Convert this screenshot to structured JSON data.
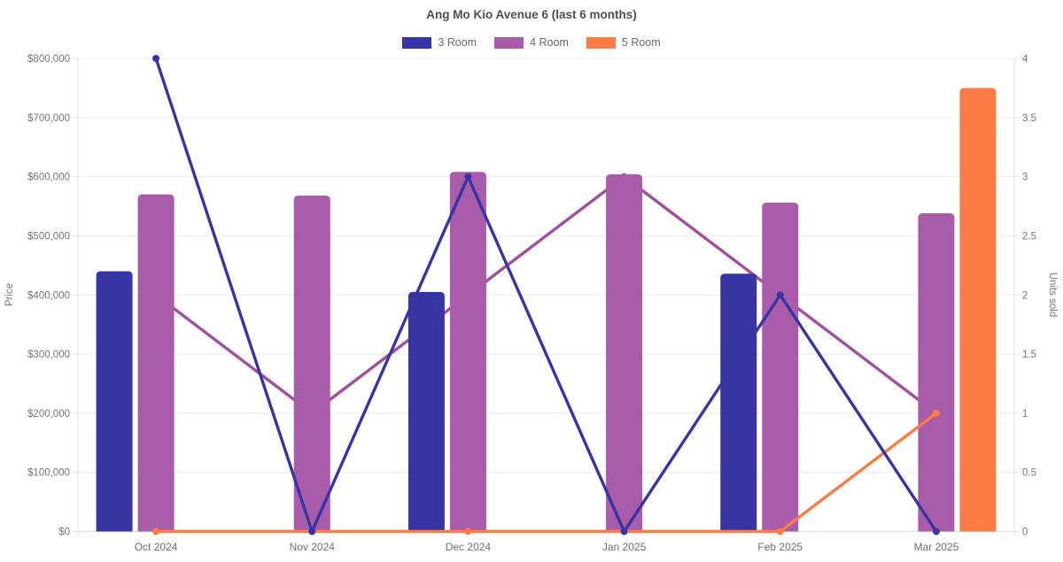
{
  "chart_data": {
    "type": "mixed bar+line",
    "title": "Ang Mo Kio Avenue 6 (last 6 months)",
    "categories": [
      "Oct 2024",
      "Nov 2024",
      "Dec 2024",
      "Jan 2025",
      "Feb 2025",
      "Mar 2025"
    ],
    "left_axis": {
      "label": "Price",
      "min": 0,
      "max": 800000,
      "step": 100000,
      "tick_prefix": "$",
      "tick_labels": [
        "$0",
        "$100,000",
        "$200,000",
        "$300,000",
        "$400,000",
        "$500,000",
        "$600,000",
        "$700,000",
        "$800,000"
      ]
    },
    "right_axis": {
      "label": "Units sold",
      "min": 0,
      "max": 4,
      "step": 0.5,
      "tick_labels": [
        "0",
        "0.5",
        "1",
        "1.5",
        "2",
        "2.5",
        "3",
        "3.5",
        "4"
      ]
    },
    "grid": true,
    "legend_position": "top",
    "series": [
      {
        "name": "3 Room",
        "color": "#3934a4",
        "bar_values_price": [
          440000,
          null,
          405000,
          null,
          436000,
          null
        ],
        "line_values_units": [
          4,
          0,
          3,
          0,
          2,
          0
        ]
      },
      {
        "name": "4 Room",
        "color": "#a85ca9",
        "line_color": "#a14f9f",
        "bar_values_price": [
          570000,
          568000,
          608000,
          604000,
          556000,
          538000
        ],
        "line_values_units": [
          2,
          1,
          2,
          3,
          2,
          1
        ]
      },
      {
        "name": "5 Room",
        "color": "#fb7c45",
        "bar_values_price": [
          null,
          null,
          null,
          null,
          null,
          750000
        ],
        "line_values_units": [
          0,
          0,
          0,
          0,
          0,
          1
        ]
      }
    ],
    "colors": {
      "grid": "#ececf1",
      "axis_line": "#e0e0e6",
      "baseline": "#d9d9df",
      "tick_text": "#75757f",
      "x_label_text": "#6e6e78"
    }
  }
}
